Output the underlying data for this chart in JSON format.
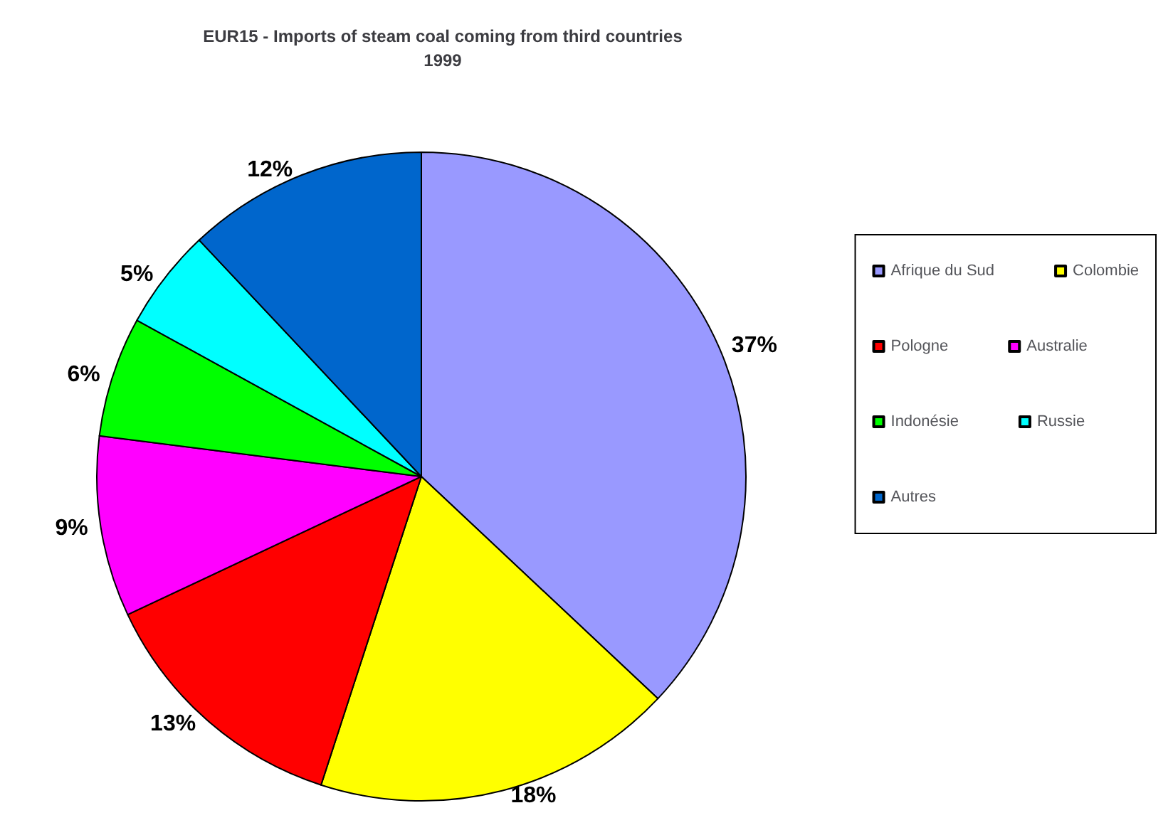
{
  "chart_data": {
    "type": "pie",
    "title": "EUR15 - Imports of steam coal coming from third countries\n1999",
    "categories": [
      "Afrique du Sud",
      "Colombie",
      "Pologne",
      "Australie",
      "Indonésie",
      "Russie",
      "Autres"
    ],
    "values": [
      37,
      18,
      13,
      9,
      6,
      5,
      12
    ],
    "value_labels": [
      "37%",
      "18%",
      "13%",
      "9%",
      "6%",
      "5%",
      "12%"
    ],
    "colors": [
      "#9999ff",
      "#ffff00",
      "#ff0000",
      "#ff00ff",
      "#00ff00",
      "#00ffff",
      "#0066cc"
    ],
    "legend": "right"
  }
}
